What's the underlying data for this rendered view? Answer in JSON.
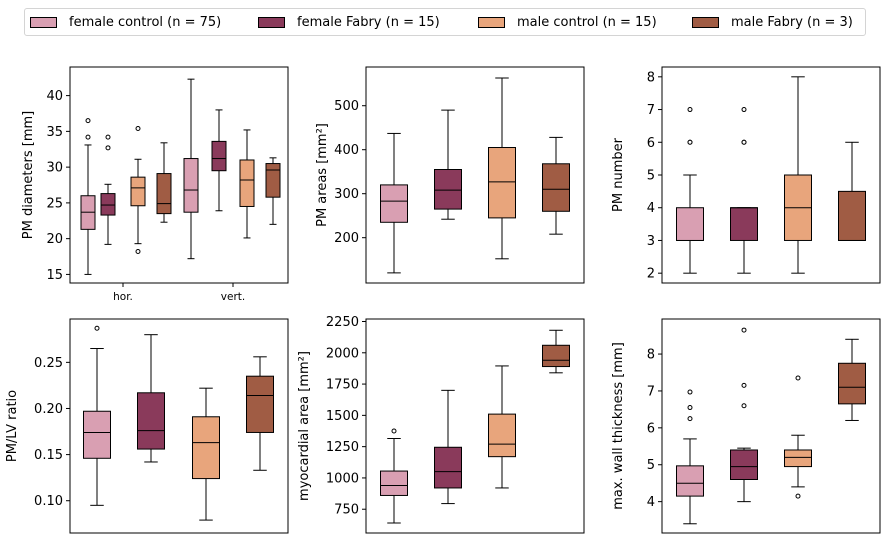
{
  "colors": {
    "female_control": "#d99fb2",
    "female_fabry": "#8a3a5b",
    "male_control": "#e8a57c",
    "male_fabry": "#a05c44"
  },
  "legend": [
    {
      "label": "female control (n = 75)",
      "color_key": "female_control"
    },
    {
      "label": "female Fabry (n = 15)",
      "color_key": "female_fabry"
    },
    {
      "label": "male control (n = 15)",
      "color_key": "male_control"
    },
    {
      "label": "male Fabry (n = 3)",
      "color_key": "male_fabry"
    }
  ],
  "chart_data": [
    {
      "type": "box",
      "ylabel": "PM diameters [mm]",
      "ylim": [
        13.8,
        44
      ],
      "yticks": [
        15,
        20,
        25,
        30,
        35,
        40
      ],
      "categories": [
        "hor.",
        "vert."
      ],
      "boxes": [
        {
          "group": "female_control",
          "category": "hor.",
          "min": 15.0,
          "q1": 21.3,
          "median": 23.7,
          "q3": 26.0,
          "max": 33.1,
          "outliers": [
            34.2,
            36.5
          ]
        },
        {
          "group": "female_fabry",
          "category": "hor.",
          "min": 19.2,
          "q1": 23.3,
          "median": 24.7,
          "q3": 26.3,
          "max": 27.6,
          "outliers": [
            32.7,
            34.2
          ]
        },
        {
          "group": "male_control",
          "category": "hor.",
          "min": 19.3,
          "q1": 24.6,
          "median": 27.1,
          "q3": 28.6,
          "max": 31.1,
          "outliers": [
            18.2,
            35.4
          ]
        },
        {
          "group": "male_fabry",
          "category": "hor.",
          "min": 22.3,
          "q1": 23.5,
          "median": 24.9,
          "q3": 29.1,
          "max": 33.4,
          "outliers": []
        },
        {
          "group": "female_control",
          "category": "vert.",
          "min": 17.2,
          "q1": 23.7,
          "median": 26.8,
          "q3": 31.2,
          "max": 42.3,
          "outliers": []
        },
        {
          "group": "female_fabry",
          "category": "vert.",
          "min": 23.9,
          "q1": 29.5,
          "median": 31.2,
          "q3": 33.6,
          "max": 38.0,
          "outliers": []
        },
        {
          "group": "male_control",
          "category": "vert.",
          "min": 20.1,
          "q1": 24.5,
          "median": 28.2,
          "q3": 31.0,
          "max": 35.2,
          "outliers": []
        },
        {
          "group": "male_fabry",
          "category": "vert.",
          "min": 22.0,
          "q1": 25.8,
          "median": 29.6,
          "q3": 30.5,
          "max": 31.3,
          "outliers": []
        }
      ]
    },
    {
      "type": "box",
      "ylabel": "PM areas [mm²]",
      "ylim": [
        97,
        588
      ],
      "yticks": [
        200,
        300,
        400,
        500
      ],
      "categories": [],
      "boxes": [
        {
          "group": "female_control",
          "min": 120,
          "q1": 235,
          "median": 283,
          "q3": 320,
          "max": 437,
          "outliers": []
        },
        {
          "group": "female_fabry",
          "min": 242,
          "q1": 265,
          "median": 308,
          "q3": 355,
          "max": 490,
          "outliers": []
        },
        {
          "group": "male_control",
          "min": 152,
          "q1": 245,
          "median": 327,
          "q3": 405,
          "max": 563,
          "outliers": []
        },
        {
          "group": "male_fabry",
          "min": 208,
          "q1": 260,
          "median": 310,
          "q3": 368,
          "max": 428,
          "outliers": []
        }
      ]
    },
    {
      "type": "box",
      "ylabel": "PM number",
      "ylim": [
        1.7,
        8.3
      ],
      "yticks": [
        2,
        3,
        4,
        5,
        6,
        7,
        8
      ],
      "categories": [],
      "boxes": [
        {
          "group": "female_control",
          "min": 2,
          "q1": 3,
          "median": 3,
          "q3": 4,
          "max": 5,
          "outliers": [
            6,
            6,
            7
          ]
        },
        {
          "group": "female_fabry",
          "min": 2,
          "q1": 3,
          "median": 4,
          "q3": 4,
          "max": 4,
          "outliers": [
            6,
            6,
            7
          ]
        },
        {
          "group": "male_control",
          "min": 2,
          "q1": 3,
          "median": 4,
          "q3": 5,
          "max": 8,
          "outliers": []
        },
        {
          "group": "male_fabry",
          "min": 3,
          "q1": 3,
          "median": 3,
          "q3": 4.5,
          "max": 6,
          "outliers": []
        }
      ]
    },
    {
      "type": "box",
      "ylabel": "PM/LV ratio",
      "ylim": [
        0.065,
        0.297
      ],
      "yticks": [
        0.1,
        0.15,
        0.2,
        0.25
      ],
      "ytick_labels": [
        "0.10",
        "0.15",
        "0.20",
        "0.25"
      ],
      "categories": [],
      "boxes": [
        {
          "group": "female_control",
          "min": 0.095,
          "q1": 0.146,
          "median": 0.174,
          "q3": 0.197,
          "max": 0.265,
          "outliers": [
            0.287
          ]
        },
        {
          "group": "female_fabry",
          "min": 0.142,
          "q1": 0.156,
          "median": 0.176,
          "q3": 0.217,
          "max": 0.28,
          "outliers": []
        },
        {
          "group": "male_control",
          "min": 0.079,
          "q1": 0.124,
          "median": 0.163,
          "q3": 0.191,
          "max": 0.222,
          "outliers": []
        },
        {
          "group": "male_fabry",
          "min": 0.133,
          "q1": 0.174,
          "median": 0.214,
          "q3": 0.235,
          "max": 0.256,
          "outliers": []
        }
      ]
    },
    {
      "type": "box",
      "ylabel": "myocardial area [mm²]",
      "ylim": [
        560,
        2270
      ],
      "yticks": [
        750,
        1000,
        1250,
        1500,
        1750,
        2000,
        2250
      ],
      "categories": [],
      "boxes": [
        {
          "group": "female_control",
          "min": 640,
          "q1": 860,
          "median": 940,
          "q3": 1055,
          "max": 1315,
          "outliers": [
            1375
          ]
        },
        {
          "group": "female_fabry",
          "min": 795,
          "q1": 920,
          "median": 1050,
          "q3": 1245,
          "max": 1700,
          "outliers": []
        },
        {
          "group": "male_control",
          "min": 920,
          "q1": 1170,
          "median": 1270,
          "q3": 1510,
          "max": 1895,
          "outliers": []
        },
        {
          "group": "male_fabry",
          "min": 1840,
          "q1": 1890,
          "median": 1940,
          "q3": 2060,
          "max": 2180,
          "outliers": []
        }
      ]
    },
    {
      "type": "box",
      "ylabel": "max. wall thickness [mm]",
      "ylim": [
        3.15,
        8.95
      ],
      "yticks": [
        4,
        5,
        6,
        7,
        8
      ],
      "categories": [],
      "boxes": [
        {
          "group": "female_control",
          "min": 3.4,
          "q1": 4.15,
          "median": 4.5,
          "q3": 4.97,
          "max": 5.7,
          "outliers": [
            6.25,
            6.55,
            6.97
          ]
        },
        {
          "group": "female_fabry",
          "min": 4.0,
          "q1": 4.6,
          "median": 4.95,
          "q3": 5.4,
          "max": 5.45,
          "outliers": [
            6.6,
            7.15,
            8.65
          ]
        },
        {
          "group": "male_control",
          "min": 4.4,
          "q1": 4.95,
          "median": 5.2,
          "q3": 5.4,
          "max": 5.8,
          "outliers": [
            4.15,
            7.35
          ]
        },
        {
          "group": "male_fabry",
          "min": 6.2,
          "q1": 6.65,
          "median": 7.1,
          "q3": 7.75,
          "max": 8.4,
          "outliers": []
        }
      ]
    }
  ]
}
